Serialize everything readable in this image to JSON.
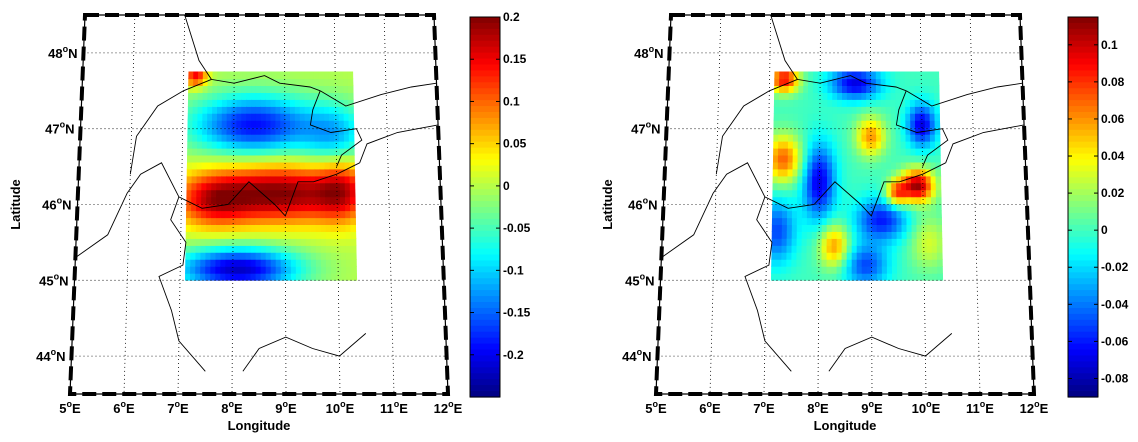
{
  "figure": {
    "panels": [
      {
        "xlabel": "Longitude",
        "ylabel": "Latitude",
        "lon_ticks": [
          "5",
          "6",
          "7",
          "8",
          "9",
          "10",
          "11",
          "12"
        ],
        "lat_ticks": [
          "48",
          "47",
          "46",
          "45",
          "44"
        ],
        "colorbar_ticks": [
          "0.2",
          "0.15",
          "0.1",
          "0.05",
          "0",
          "-0.05",
          "-0.1",
          "-0.15",
          "-0.2"
        ]
      },
      {
        "xlabel": "Longitude",
        "ylabel": "Latitude",
        "lon_ticks": [
          "5",
          "6",
          "7",
          "8",
          "9",
          "10",
          "11",
          "12"
        ],
        "lat_ticks": [
          "48",
          "47",
          "46",
          "45",
          "44"
        ],
        "colorbar_ticks": [
          "0.1",
          "0.08",
          "0.06",
          "0.04",
          "0.02",
          "0",
          "-0.02",
          "-0.04",
          "-0.06",
          "-0.08"
        ]
      }
    ],
    "lon_suffix": "E",
    "lat_suffix": "N",
    "degree_symbol": "o"
  },
  "chart_data": [
    {
      "type": "heatmap",
      "colormap": "jet",
      "clim": [
        -0.25,
        0.2
      ],
      "lon_range": [
        7.1,
        10.35
      ],
      "lat_range": [
        45.0,
        47.75
      ],
      "map_extent": {
        "lon": [
          5,
          12
        ],
        "lat": [
          43.5,
          48.5
        ]
      },
      "grid": true,
      "features": [
        {
          "lon": 7.25,
          "lat": 47.7,
          "value": 0.15,
          "sx": 0.15,
          "sy": 0.1
        },
        {
          "lon": 8.4,
          "lat": 47.05,
          "value": -0.19,
          "sx": 0.85,
          "sy": 0.28
        },
        {
          "lon": 10.0,
          "lat": 46.9,
          "value": -0.1,
          "sx": 0.45,
          "sy": 0.3
        },
        {
          "lon": 8.9,
          "lat": 46.15,
          "value": 0.2,
          "sx": 0.95,
          "sy": 0.27
        },
        {
          "lon": 7.6,
          "lat": 46.05,
          "value": 0.12,
          "sx": 0.5,
          "sy": 0.25
        },
        {
          "lon": 10.1,
          "lat": 46.2,
          "value": 0.11,
          "sx": 0.35,
          "sy": 0.3
        },
        {
          "lon": 8.1,
          "lat": 45.15,
          "value": -0.22,
          "sx": 0.8,
          "sy": 0.2
        },
        {
          "lon": 9.8,
          "lat": 45.4,
          "value": 0.0,
          "sx": 0.4,
          "sy": 0.25
        }
      ]
    },
    {
      "type": "heatmap",
      "colormap": "jet",
      "clim": [
        -0.09,
        0.115
      ],
      "lon_range": [
        7.1,
        10.35
      ],
      "lat_range": [
        45.0,
        47.75
      ],
      "map_extent": {
        "lon": [
          5,
          12
        ],
        "lat": [
          43.5,
          48.5
        ]
      },
      "grid": true,
      "features": [
        {
          "lon": 7.3,
          "lat": 47.65,
          "value": 0.09,
          "sx": 0.2,
          "sy": 0.12
        },
        {
          "lon": 8.7,
          "lat": 47.6,
          "value": -0.07,
          "sx": 0.35,
          "sy": 0.15
        },
        {
          "lon": 10.0,
          "lat": 47.05,
          "value": -0.07,
          "sx": 0.2,
          "sy": 0.2
        },
        {
          "lon": 9.0,
          "lat": 46.9,
          "value": 0.06,
          "sx": 0.2,
          "sy": 0.18
        },
        {
          "lon": 7.3,
          "lat": 46.6,
          "value": 0.07,
          "sx": 0.25,
          "sy": 0.22
        },
        {
          "lon": 8.0,
          "lat": 46.3,
          "value": -0.07,
          "sx": 0.22,
          "sy": 0.35
        },
        {
          "lon": 7.2,
          "lat": 45.65,
          "value": -0.05,
          "sx": 0.25,
          "sy": 0.3
        },
        {
          "lon": 8.3,
          "lat": 45.45,
          "value": 0.06,
          "sx": 0.2,
          "sy": 0.2
        },
        {
          "lon": 9.2,
          "lat": 45.8,
          "value": -0.06,
          "sx": 0.35,
          "sy": 0.2
        },
        {
          "lon": 9.9,
          "lat": 46.25,
          "value": 0.11,
          "sx": 0.22,
          "sy": 0.15
        },
        {
          "lon": 9.5,
          "lat": 46.15,
          "value": 0.07,
          "sx": 0.15,
          "sy": 0.12
        },
        {
          "lon": 8.9,
          "lat": 45.2,
          "value": -0.05,
          "sx": 0.3,
          "sy": 0.2
        },
        {
          "lon": 10.1,
          "lat": 45.5,
          "value": 0.03,
          "sx": 0.25,
          "sy": 0.25
        }
      ]
    }
  ]
}
